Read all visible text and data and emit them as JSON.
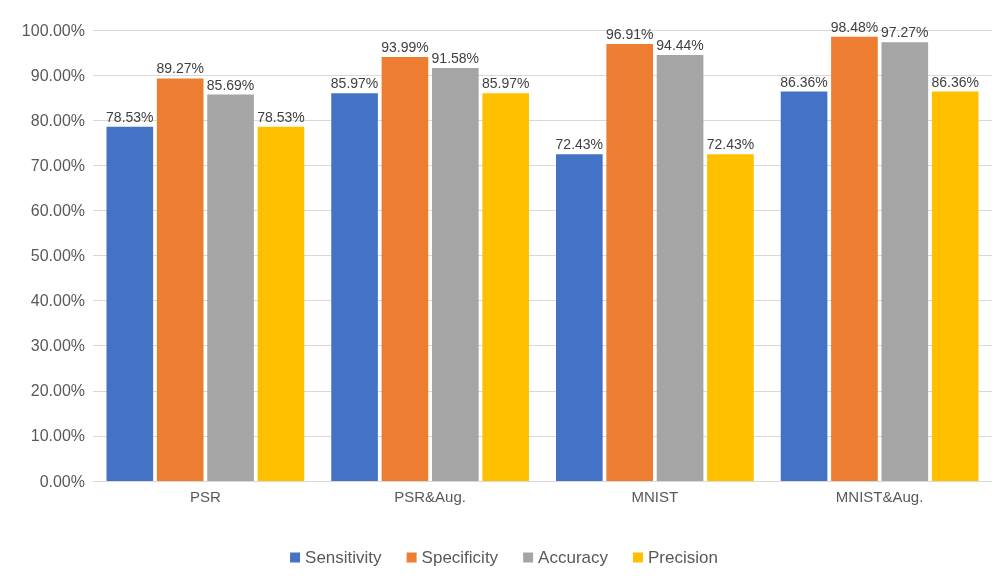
{
  "chart_data": {
    "type": "bar",
    "categories": [
      "PSR",
      "PSR&Aug.",
      "MNIST",
      "MNIST&Aug."
    ],
    "series": [
      {
        "name": "Sensitivity",
        "color": "#4472c4",
        "values": [
          78.53,
          85.97,
          72.43,
          86.36
        ],
        "value_labels": [
          "78.53%",
          "85.97%",
          "72.43%",
          "86.36%"
        ]
      },
      {
        "name": "Specificity",
        "color": "#ed7d31",
        "values": [
          89.27,
          93.99,
          96.91,
          98.48
        ],
        "value_labels": [
          "89.27%",
          "93.99%",
          "96.91%",
          "98.48%"
        ]
      },
      {
        "name": "Accuracy",
        "color": "#a5a5a5",
        "values": [
          85.69,
          91.58,
          94.44,
          97.27
        ],
        "value_labels": [
          "85.69%",
          "91.58%",
          "94.44%",
          "97.27%"
        ]
      },
      {
        "name": "Precision",
        "color": "#ffc000",
        "values": [
          78.53,
          85.97,
          72.43,
          86.36
        ],
        "value_labels": [
          "78.53%",
          "85.97%",
          "72.43%",
          "86.36%"
        ]
      }
    ],
    "ylim": [
      0,
      100
    ],
    "yticks": [
      {
        "value": 0,
        "label": "0.00%"
      },
      {
        "value": 10,
        "label": "10.00%"
      },
      {
        "value": 20,
        "label": "20.00%"
      },
      {
        "value": 30,
        "label": "30.00%"
      },
      {
        "value": 40,
        "label": "40.00%"
      },
      {
        "value": 50,
        "label": "50.00%"
      },
      {
        "value": 60,
        "label": "60.00%"
      },
      {
        "value": 70,
        "label": "70.00%"
      },
      {
        "value": 80,
        "label": "80.00%"
      },
      {
        "value": 90,
        "label": "90.00%"
      },
      {
        "value": 100,
        "label": "100.00%"
      }
    ],
    "grid": "y",
    "legend": "bottom"
  }
}
